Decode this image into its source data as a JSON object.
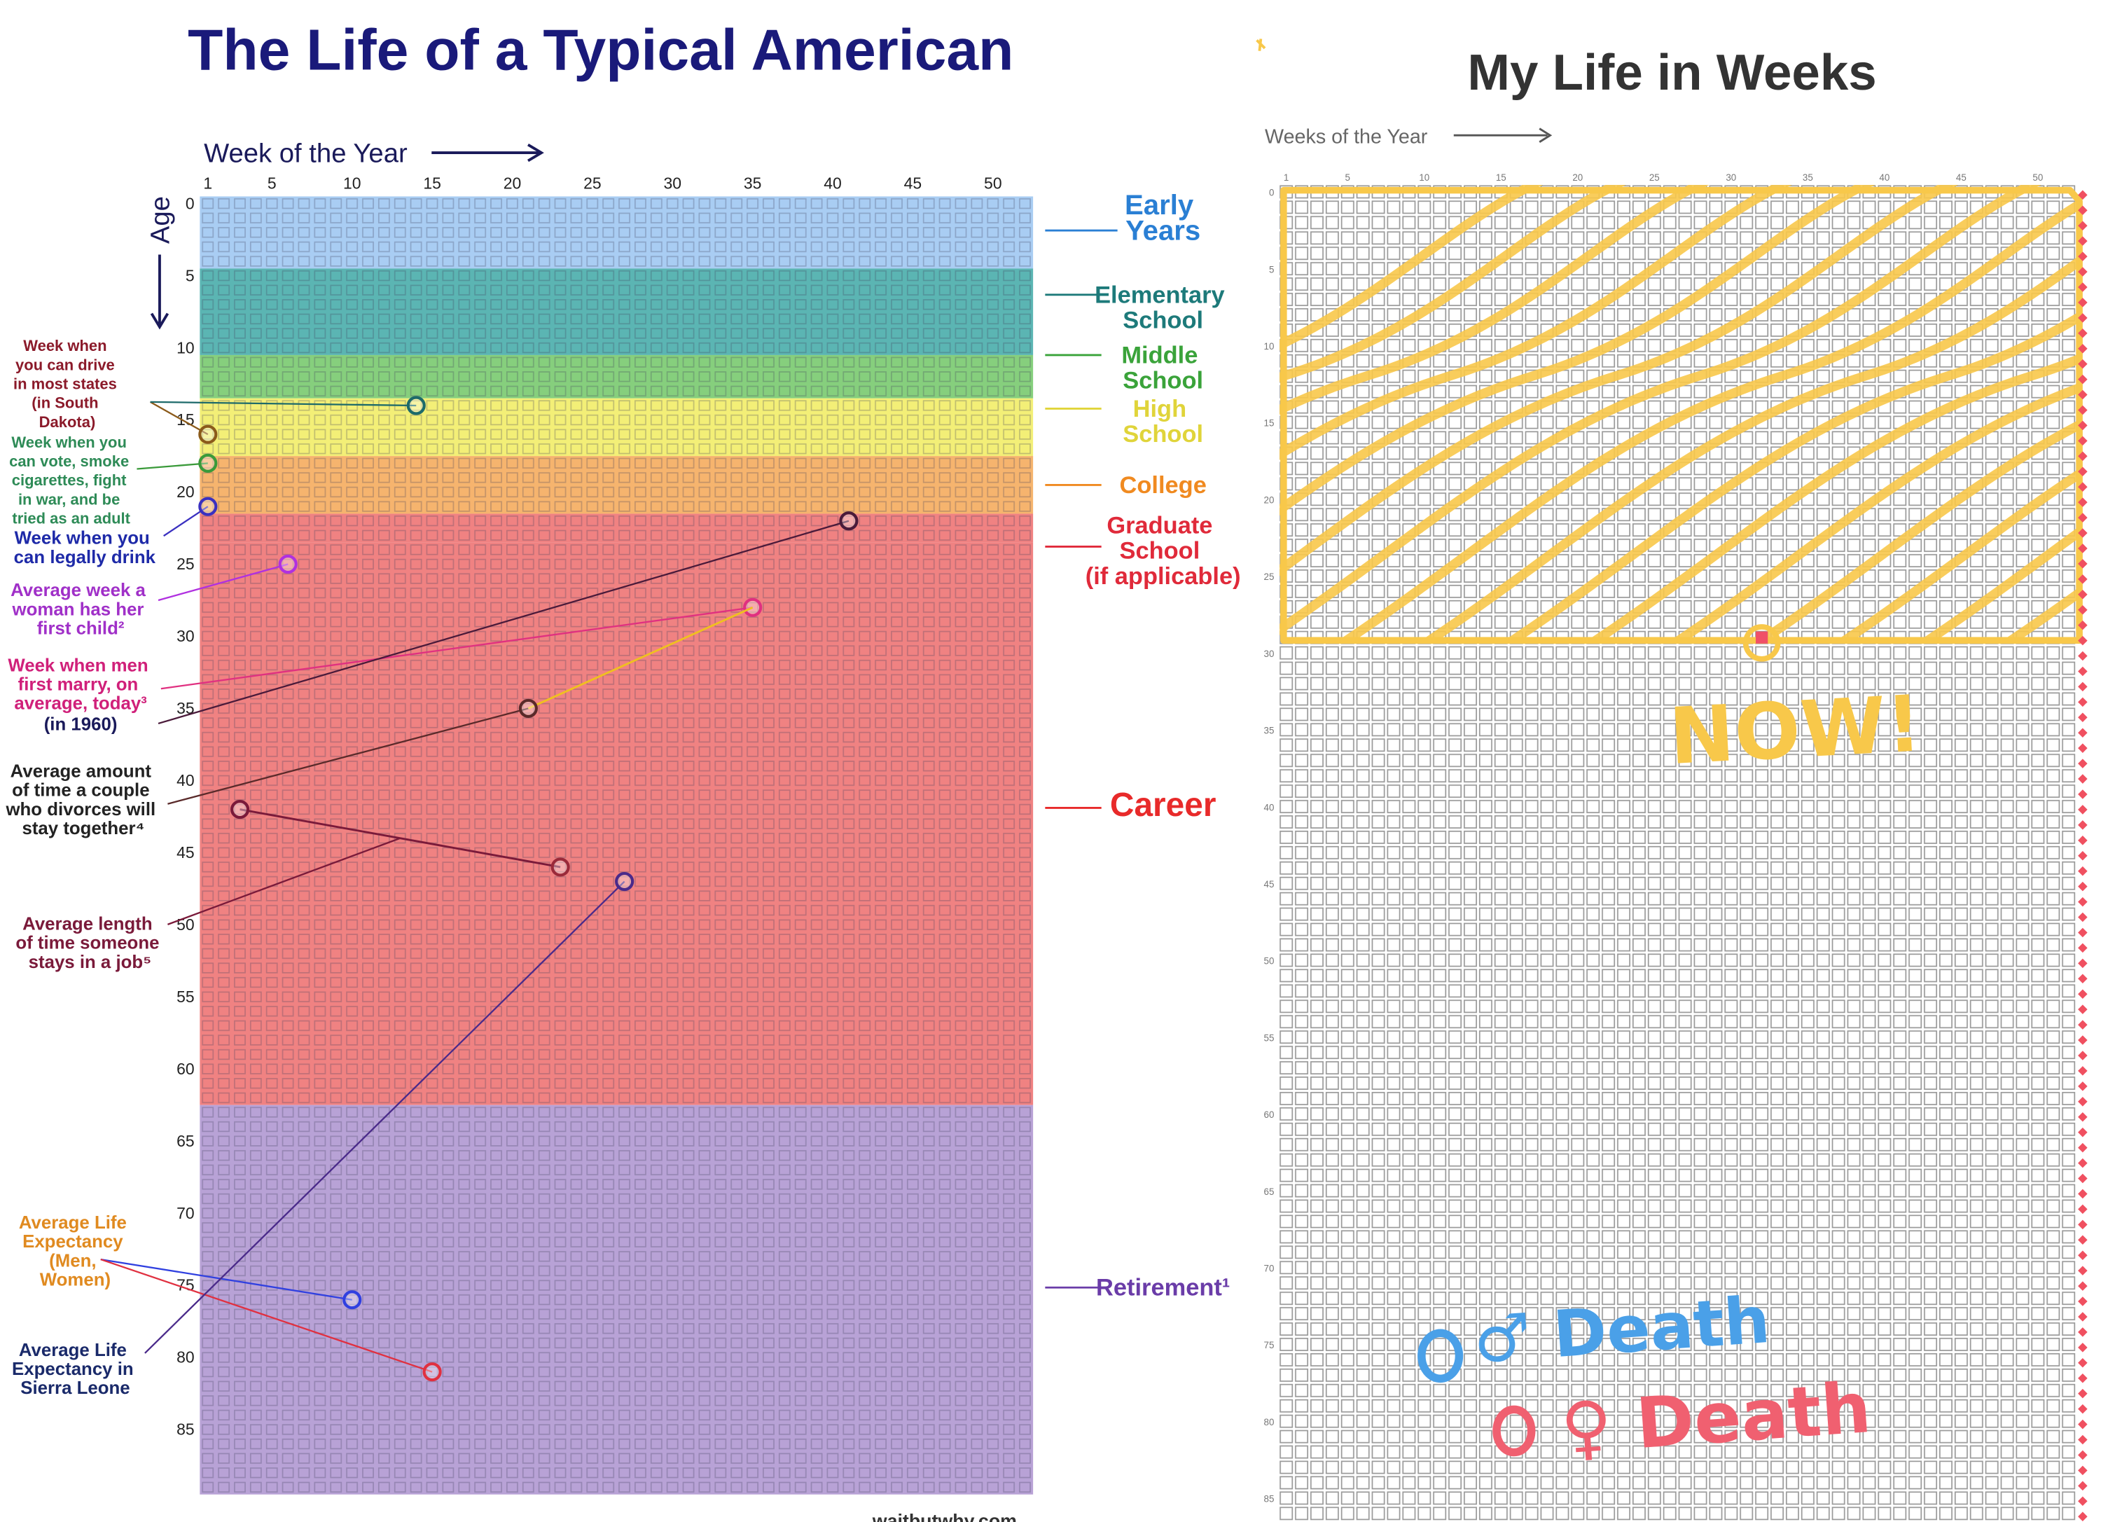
{
  "left": {
    "title": "The Life of a Typical American",
    "x_axis_label": "Week of the Year",
    "y_axis_label": "Age",
    "xticks": [
      1,
      5,
      10,
      15,
      20,
      25,
      30,
      35,
      40,
      45,
      50
    ],
    "yticks": [
      0,
      5,
      10,
      15,
      20,
      25,
      30,
      35,
      40,
      45,
      50,
      55,
      60,
      65,
      70,
      75,
      80,
      85
    ],
    "stages": [
      {
        "label": "Early\nYears",
        "color": "#2a7fd4",
        "band_color": "#a9cdf3",
        "start": 0,
        "end": 5
      },
      {
        "label": "Elementary\nSchool",
        "color": "#1d7a7a",
        "band_color": "#5bb5b3",
        "start": 5,
        "end": 11
      },
      {
        "label": "Middle\nSchool",
        "color": "#3aa33a",
        "band_color": "#86cf7d",
        "start": 11,
        "end": 14
      },
      {
        "label": "High\nSchool",
        "color": "#e0d43a",
        "band_color": "#f3ef77",
        "start": 14,
        "end": 18
      },
      {
        "label": "College",
        "color": "#f08a20",
        "band_color": "#f6b46e",
        "start": 18,
        "end": 22
      },
      {
        "label": "Graduate\nSchool\n(if applicable)",
        "color": "#e02a3a",
        "band_color": "#f08282",
        "start": 22,
        "end": 24
      },
      {
        "label": "Career",
        "color": "#e82a2a",
        "band_color": "#f08282",
        "start": 24,
        "end": 63
      },
      {
        "label": "Retirement¹",
        "color": "#6a3ca8",
        "band_color": "#b8a2d6",
        "start": 63,
        "end": 90
      }
    ],
    "annotations": [
      {
        "text": "Week when\nyou can drive\nin most states\n(in South\nDakota)",
        "color": "#8b1a2a",
        "points": [
          {
            "week": 1,
            "age": 16,
            "color": "#8b5a1a"
          },
          {
            "week": 14,
            "age": 14,
            "color": "#1d6a6a"
          }
        ]
      },
      {
        "text": "Week when you\ncan vote, smoke\ncigarettes, fight\nin war, and be\ntried as an adult",
        "color": "#2e8b57",
        "points": [
          {
            "week": 1,
            "age": 18,
            "color": "#3a9a3a"
          }
        ]
      },
      {
        "text": "Week when you\ncan legally drink",
        "color": "#1e2aa8",
        "points": [
          {
            "week": 1,
            "age": 21,
            "color": "#3a30c0"
          }
        ]
      },
      {
        "text": "Average week a\nwoman has her\nfirst child²",
        "color": "#a030c8",
        "points": [
          {
            "week": 6,
            "age": 25,
            "color": "#b030e0"
          }
        ]
      },
      {
        "text": "Week when men\nfirst marry, on\naverage, today³",
        "color": "#d0207a",
        "points": [
          {
            "week": 35,
            "age": 28,
            "color": "#e03080"
          }
        ]
      },
      {
        "text": "(in 1960)",
        "color": "#1a1a5a",
        "points": [
          {
            "week": 41,
            "age": 22,
            "color": "#4a1a3a"
          }
        ]
      },
      {
        "text": "Average amount\nof time a couple\nwho divorces will\nstay together⁴",
        "color": "#222222",
        "points": [
          {
            "week": 21,
            "age": 35,
            "color": "#5a2a2a"
          }
        ]
      },
      {
        "text": "Average length\nof time someone\nstays in a job⁵",
        "color": "#7a1a3a",
        "points": [
          {
            "week": 3,
            "age": 42,
            "color": "#7a1a3a"
          },
          {
            "week": 23,
            "age": 46,
            "color": "#9a2a3a"
          }
        ]
      },
      {
        "text": "Average Life\nExpectancy\n(Men,\nWomen)",
        "color": "#e08a20",
        "points": [
          {
            "week": 10,
            "age": 76,
            "color": "#3040e0"
          },
          {
            "week": 15,
            "age": 81,
            "color": "#e03040"
          }
        ]
      },
      {
        "text": "Average Life\nExpectancy in\nSierra Leone",
        "color": "#1a2a6a",
        "points": [
          {
            "week": 27,
            "age": 47,
            "color": "#4a2a8a"
          }
        ]
      }
    ],
    "credit": "waitbutwhy.com"
  },
  "right": {
    "title": "My Life in Weeks",
    "x_axis_label": "Weeks of the Year",
    "xticks": [
      1,
      5,
      10,
      15,
      20,
      25,
      30,
      35,
      40,
      45,
      50
    ],
    "yticks": [
      0,
      5,
      10,
      15,
      20,
      25,
      30,
      35,
      40,
      45,
      50,
      55,
      60,
      65,
      70,
      75,
      80,
      85
    ],
    "now": {
      "week": 32,
      "age": 29
    },
    "now_label": "NOW!",
    "male_death": "♂ Death",
    "female_death": "♀ Death"
  }
}
